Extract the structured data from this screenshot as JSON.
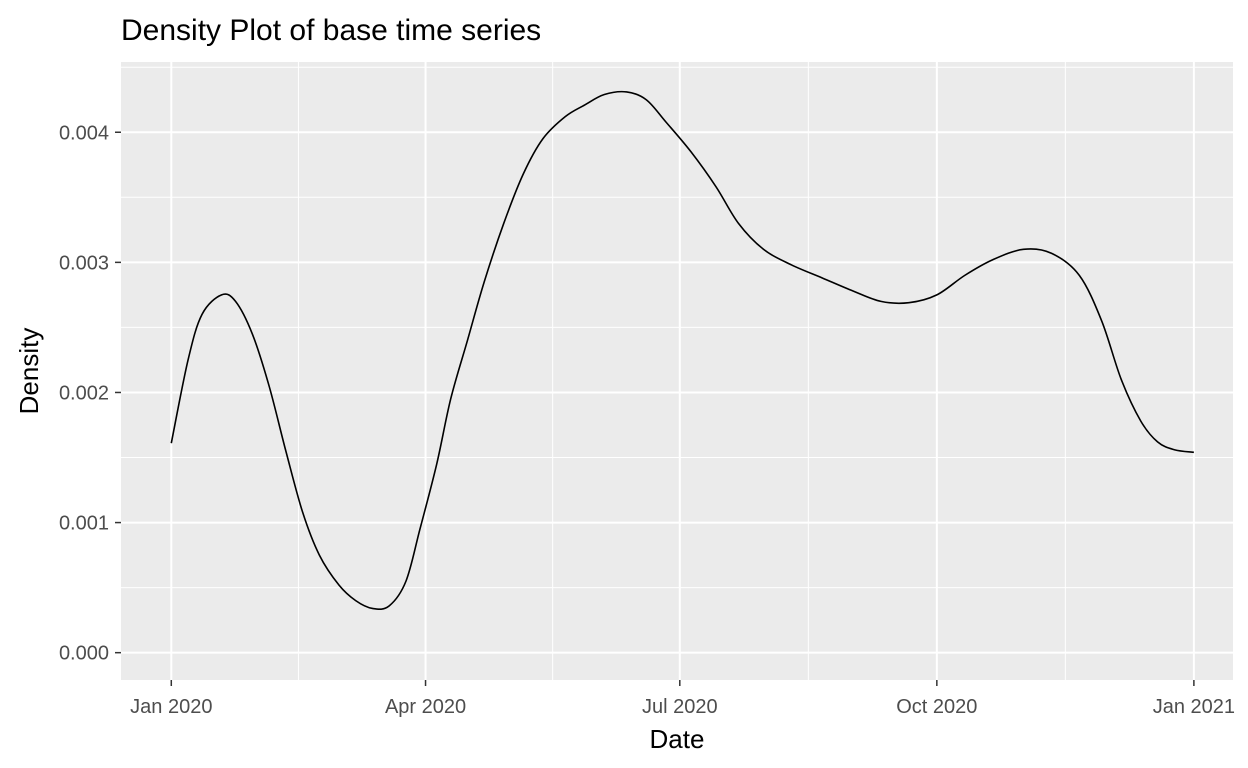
{
  "chart_data": {
    "type": "line",
    "title": "Density Plot of base time series",
    "xlabel": "Date",
    "ylabel": "Density",
    "x_ticks": [
      {
        "date": "2020-01-01",
        "label": "Jan 2020"
      },
      {
        "date": "2020-04-01",
        "label": "Apr 2020"
      },
      {
        "date": "2020-07-01",
        "label": "Jul 2020"
      },
      {
        "date": "2020-10-01",
        "label": "Oct 2020"
      },
      {
        "date": "2021-01-01",
        "label": "Jan 2021"
      }
    ],
    "y_ticks": [
      {
        "value": 0.0,
        "label": "0.000"
      },
      {
        "value": 0.001,
        "label": "0.001"
      },
      {
        "value": 0.002,
        "label": "0.002"
      },
      {
        "value": 0.003,
        "label": "0.003"
      },
      {
        "value": 0.004,
        "label": "0.004"
      }
    ],
    "xlim": [
      "2019-12-14",
      "2021-01-15"
    ],
    "ylim": [
      -0.00021,
      0.00454
    ],
    "grid": true,
    "line_color": "#000000",
    "panel_background": "#ebebeb",
    "grid_color": "#ffffff",
    "x": [
      "2020-01-01",
      "2020-01-07",
      "2020-01-12",
      "2020-01-19",
      "2020-01-24",
      "2020-01-30",
      "2020-02-05",
      "2020-02-11",
      "2020-02-17",
      "2020-02-23",
      "2020-03-01",
      "2020-03-07",
      "2020-03-13",
      "2020-03-19",
      "2020-03-25",
      "2020-03-30",
      "2020-04-05",
      "2020-04-10",
      "2020-04-16",
      "2020-04-22",
      "2020-04-29",
      "2020-05-06",
      "2020-05-13",
      "2020-05-21",
      "2020-05-28",
      "2020-06-04",
      "2020-06-12",
      "2020-06-19",
      "2020-06-26",
      "2020-07-05",
      "2020-07-14",
      "2020-07-22",
      "2020-07-31",
      "2020-08-10",
      "2020-08-21",
      "2020-09-01",
      "2020-09-11",
      "2020-09-21",
      "2020-10-01",
      "2020-10-11",
      "2020-10-21",
      "2020-11-01",
      "2020-11-11",
      "2020-11-21",
      "2020-11-29",
      "2020-12-06",
      "2020-12-13",
      "2020-12-19",
      "2020-12-25",
      "2021-01-01"
    ],
    "y": [
      0.00161,
      0.00225,
      0.0026,
      0.00275,
      0.0027,
      0.00245,
      0.00205,
      0.00155,
      0.00108,
      0.00075,
      0.00052,
      0.0004,
      0.00034,
      0.00036,
      0.00055,
      0.00095,
      0.00145,
      0.00195,
      0.0024,
      0.00285,
      0.0033,
      0.00368,
      0.00395,
      0.00412,
      0.00421,
      0.00429,
      0.00431,
      0.00425,
      0.00408,
      0.00385,
      0.00358,
      0.0033,
      0.0031,
      0.00298,
      0.00288,
      0.00278,
      0.0027,
      0.00269,
      0.00275,
      0.0029,
      0.00302,
      0.0031,
      0.00307,
      0.0029,
      0.00255,
      0.0021,
      0.00178,
      0.00162,
      0.00156,
      0.00154
    ]
  }
}
